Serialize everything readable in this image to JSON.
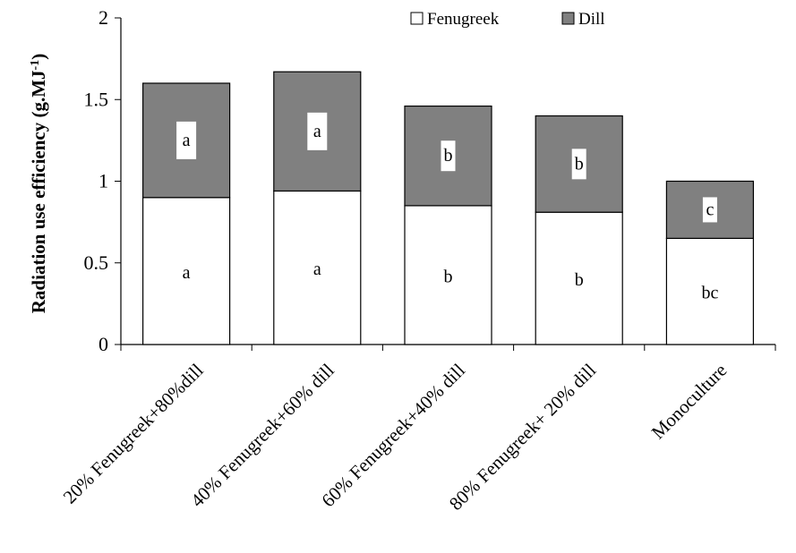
{
  "chart_data": {
    "type": "bar",
    "stacked": true,
    "title": "",
    "xlabel": "",
    "ylabel": "Radiation use efficiency (g.MJ",
    "ylabel_sup": "-1",
    "ylabel_close": ")",
    "ylim": [
      0,
      2
    ],
    "yticks": [
      0,
      0.5,
      1,
      1.5,
      2
    ],
    "ytick_labels": [
      "0",
      "0.5",
      "1",
      "1.5",
      "2"
    ],
    "grid": false,
    "legend_position": "top-right",
    "categories": [
      "20% Fenugreek+80%dill",
      "40% Fenugreek+60% dill",
      "60% Fenugreek+40% dill",
      "80% Fenugreek+ 20% dill",
      "Monoculture"
    ],
    "series": [
      {
        "name": "Fenugreek",
        "color": "#ffffff",
        "values": [
          0.9,
          0.94,
          0.85,
          0.81,
          0.65
        ],
        "letters": [
          "a",
          "a",
          "b",
          "b",
          "bc"
        ]
      },
      {
        "name": "Dill",
        "color": "#808080",
        "values": [
          0.7,
          0.73,
          0.61,
          0.59,
          0.35
        ],
        "letters": [
          "a",
          "a",
          "b",
          "b",
          "c"
        ]
      }
    ]
  }
}
